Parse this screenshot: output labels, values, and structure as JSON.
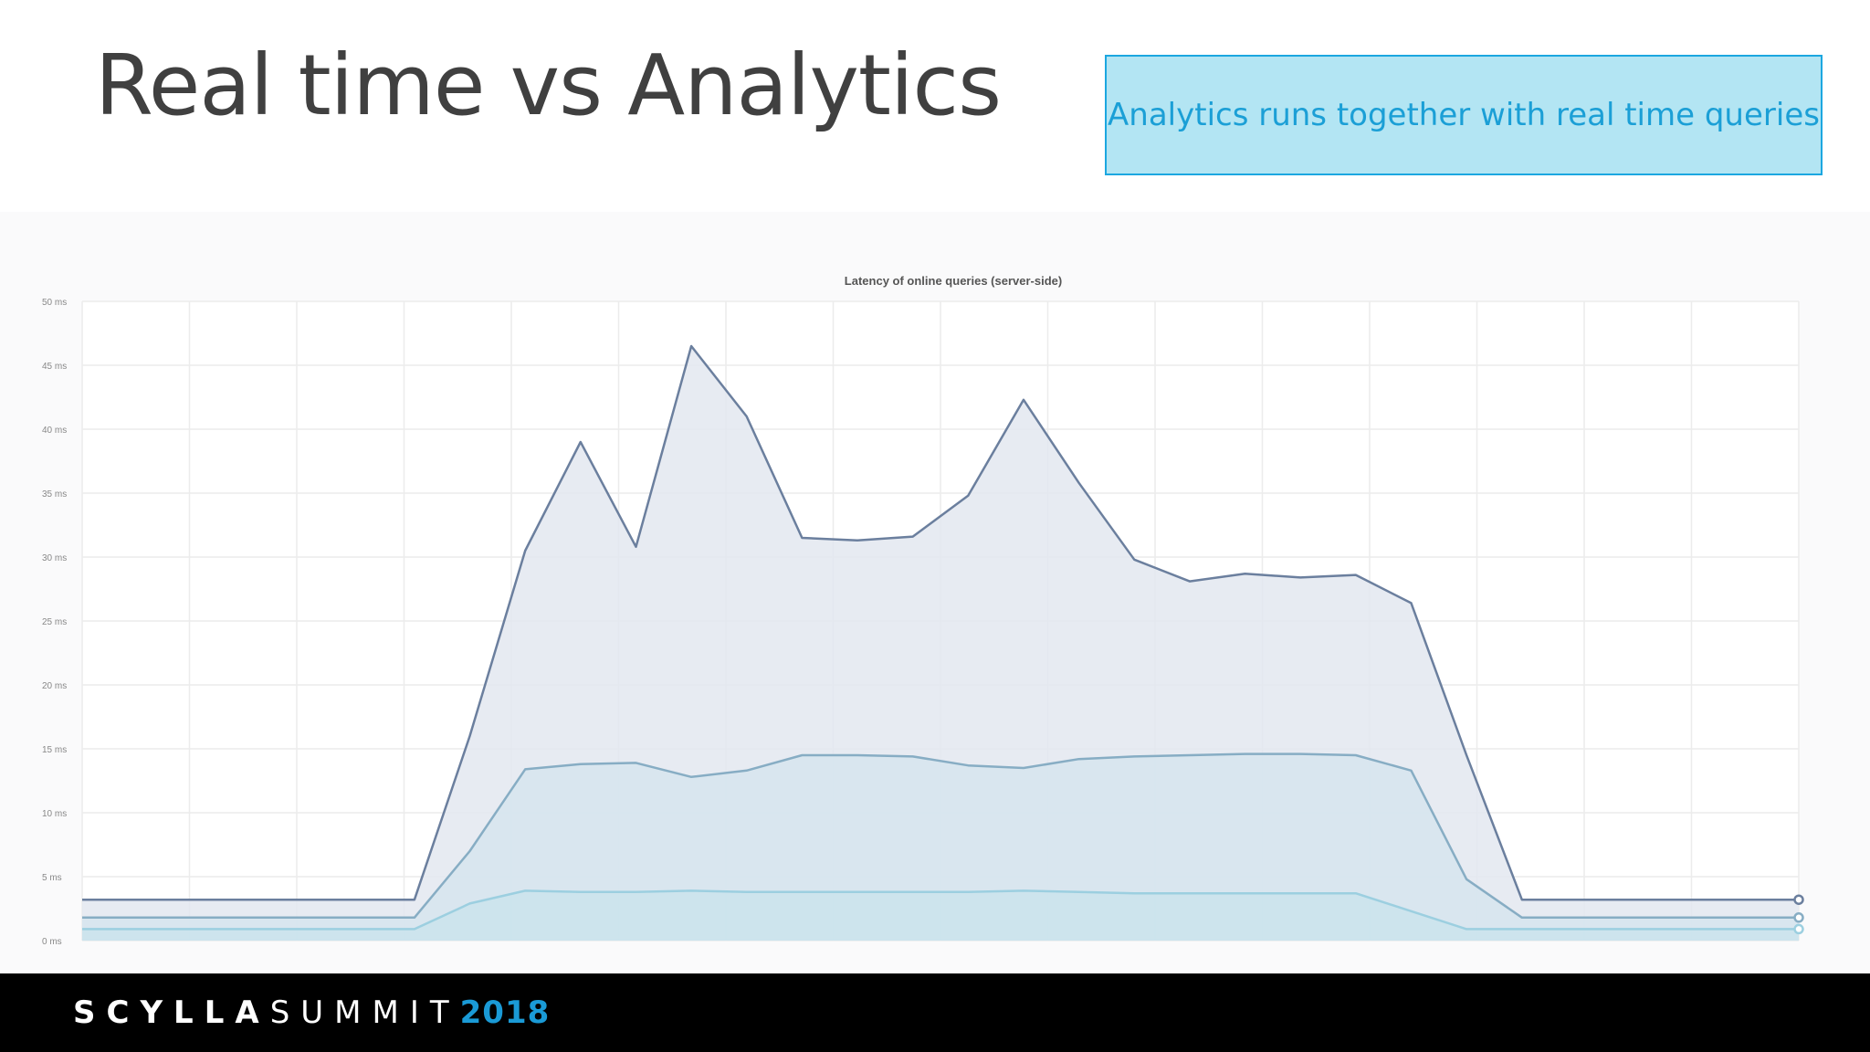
{
  "slide": {
    "title": "Real time vs Analytics",
    "callout": "Analytics runs together with real time queries"
  },
  "footer": {
    "brand_bold": "SCYLLA",
    "brand_light": "SUMMIT",
    "brand_year": "2018"
  },
  "chart_data": {
    "type": "area",
    "title": "Latency of online queries (server-side)",
    "xlabel": "",
    "ylabel": "",
    "ylim": [
      0,
      50
    ],
    "y_ticks": [
      "0 ms",
      "5 ms",
      "10 ms",
      "15 ms",
      "20 ms",
      "25 ms",
      "30 ms",
      "35 ms",
      "40 ms",
      "45 ms",
      "50 ms"
    ],
    "grid": true,
    "legend": "none",
    "x": [
      0,
      1,
      2,
      3,
      4,
      5,
      6,
      7,
      8,
      9,
      10,
      11,
      12,
      13,
      14,
      15,
      16,
      17,
      18,
      19,
      20,
      21,
      22,
      23,
      24,
      25,
      26,
      27,
      28,
      29,
      30,
      31
    ],
    "series": [
      {
        "color": "#6b7f9e",
        "fill": "#e3e8f0",
        "values": [
          3.2,
          3.2,
          3.2,
          3.2,
          3.2,
          3.2,
          3.2,
          16,
          30.5,
          39,
          30.8,
          46.5,
          41,
          31.5,
          31.3,
          31.6,
          34.8,
          42.3,
          35.8,
          29.8,
          28.1,
          28.7,
          28.4,
          28.6,
          26.4,
          14.5,
          3.2,
          3.2,
          3.2,
          3.2,
          3.2,
          3.2
        ]
      },
      {
        "color": "#87adc4",
        "fill": "#d6e5ee",
        "values": [
          1.8,
          1.8,
          1.8,
          1.8,
          1.8,
          1.8,
          1.8,
          7,
          13.4,
          13.8,
          13.9,
          12.8,
          13.3,
          14.5,
          14.5,
          14.4,
          13.7,
          13.5,
          14.2,
          14.4,
          14.5,
          14.6,
          14.6,
          14.5,
          13.3,
          4.8,
          1.8,
          1.8,
          1.8,
          1.8,
          1.8,
          1.8
        ]
      },
      {
        "color": "#9ccfe0",
        "fill": "#cae3ec",
        "values": [
          0.9,
          0.9,
          0.9,
          0.9,
          0.9,
          0.9,
          0.9,
          2.9,
          3.9,
          3.8,
          3.8,
          3.9,
          3.8,
          3.8,
          3.8,
          3.8,
          3.8,
          3.9,
          3.8,
          3.7,
          3.7,
          3.7,
          3.7,
          3.7,
          2.3,
          0.9,
          0.9,
          0.9,
          0.9,
          0.9,
          0.9,
          0.9
        ]
      }
    ]
  }
}
